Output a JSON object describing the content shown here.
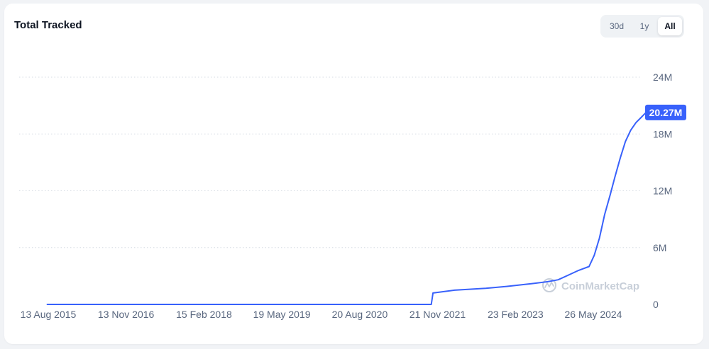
{
  "title": "Total Tracked",
  "range_buttons": [
    "30d",
    "1y",
    "All"
  ],
  "active_range": "All",
  "watermark": "CoinMarketCap",
  "colors": {
    "line": "#3861fb",
    "label_bg": "#3861fb",
    "grid": "#d6dbe3",
    "tick_text": "#58667e"
  },
  "chart_data": {
    "type": "line",
    "title": "Total Tracked",
    "xlabel": "",
    "ylabel": "",
    "y_ticks": [
      "0",
      "6M",
      "12M",
      "18M",
      "24M"
    ],
    "ylim": [
      0,
      24000000
    ],
    "x_ticks": [
      "13 Aug 2015",
      "13 Nov 2016",
      "15 Feb 2018",
      "19 May 2019",
      "20 Aug 2020",
      "21 Nov 2021",
      "23 Feb 2023",
      "26 May 2024"
    ],
    "last_value_label": "20.27M",
    "grid": true,
    "series": [
      {
        "values_x": [
          "2015-08-07",
          "2021-10-15",
          "2021-10-25",
          "2022-03-01",
          "2022-09-01",
          "2023-01-01",
          "2023-06-01",
          "2023-09-01",
          "2023-11-01",
          "2024-01-01",
          "2024-03-01",
          "2024-05-01",
          "2024-06-01",
          "2024-07-01",
          "2024-08-01",
          "2024-09-01",
          "2024-10-01",
          "2024-11-01",
          "2024-12-01",
          "2025-01-01",
          "2025-02-01",
          "2025-03-01",
          "2025-04-01"
        ],
        "values_y": [
          0,
          0,
          1200000,
          1500000,
          1700000,
          1900000,
          2200000,
          2400000,
          2600000,
          3100000,
          3600000,
          4000000,
          5200000,
          7000000,
          9500000,
          11500000,
          13500000,
          15500000,
          17200000,
          18400000,
          19200000,
          19700000,
          20270000
        ]
      }
    ]
  }
}
